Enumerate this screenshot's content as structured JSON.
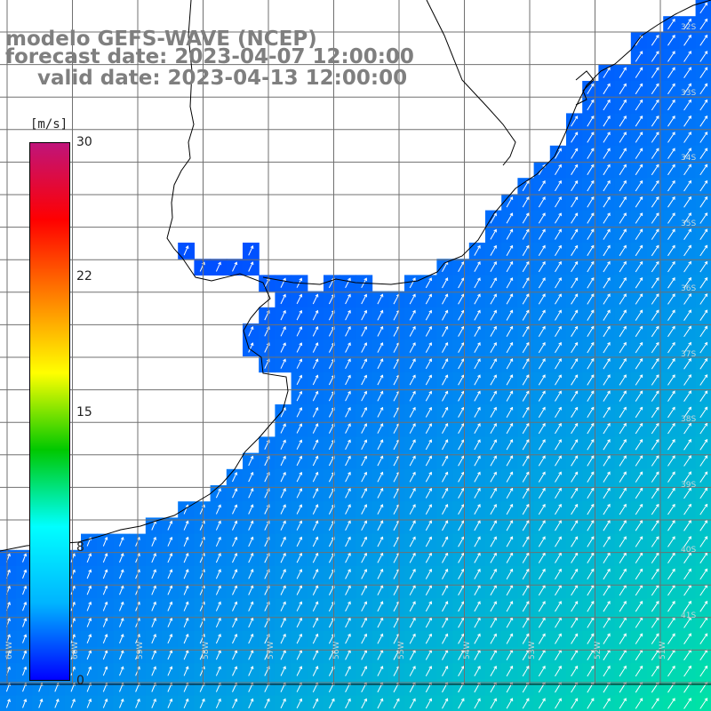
{
  "title": {
    "line1": "modelo GEFS-WAVE (NCEP)",
    "line2": "forecast date: 2023-04-07 12:00:00",
    "line3": "valid date: 2023-04-13 12:00:00"
  },
  "colorbar": {
    "unit_label": "[m/s]",
    "ticks": [
      "30",
      "22",
      "15",
      "8",
      "0"
    ],
    "colors": [
      "#c0147a",
      "#ff0000",
      "#ff8000",
      "#ffff00",
      "#00c800",
      "#00ffff",
      "#00b4ff",
      "#0000ff"
    ]
  },
  "map": {
    "latitude_labels": [
      "32S",
      "33S",
      "34S",
      "35S",
      "36S",
      "37S",
      "38S",
      "39S",
      "40S",
      "41S"
    ],
    "longitude_labels": [
      "61W",
      "60W",
      "59W",
      "58W",
      "57W",
      "56W",
      "55W",
      "54W",
      "53W",
      "52W",
      "51W"
    ],
    "field": "wind speed",
    "colors": {
      "land": "#ffffff",
      "coast": "#000000",
      "grid": "#707070",
      "arrows": "#ffffff",
      "low_speed": "#0050ff",
      "high_speed": "#00ff80"
    }
  }
}
